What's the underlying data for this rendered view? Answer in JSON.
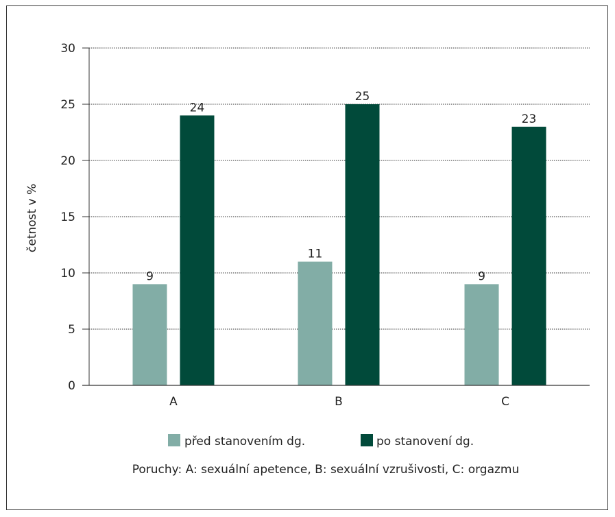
{
  "chart_data": {
    "type": "bar",
    "title": "",
    "xlabel": "",
    "ylabel": "četnost v %",
    "ylim": [
      0,
      30
    ],
    "yticks": [
      0,
      5,
      10,
      15,
      20,
      25,
      30
    ],
    "grid": true,
    "legend_position": "bottom",
    "categories": [
      "A",
      "B",
      "C"
    ],
    "series": [
      {
        "name": "před stanovením dg.",
        "values": [
          9,
          11,
          9
        ],
        "color": "#82ada6"
      },
      {
        "name": "po stanovení dg.",
        "values": [
          24,
          25,
          23
        ],
        "color": "#014a3a"
      }
    ],
    "footnote": "Poruchy: A: sexuální apetence, B: sexuální vzrušivosti, C: orgazmu"
  }
}
